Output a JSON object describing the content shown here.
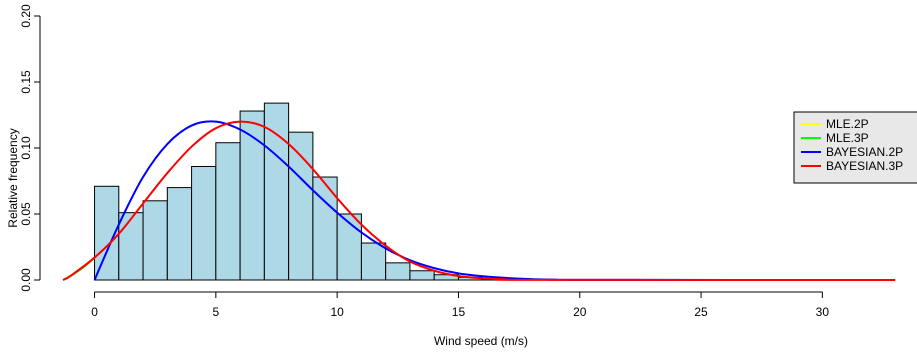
{
  "chart_data": {
    "type": "bar",
    "title": "",
    "xlabel": "Wind speed (m/s)",
    "ylabel": "Relative frequency",
    "xlim": [
      -1.3,
      33.2
    ],
    "ylim": [
      0,
      0.2
    ],
    "x_ticks": [
      0,
      5,
      10,
      15,
      20,
      25,
      30
    ],
    "y_ticks": [
      0.0,
      0.05,
      0.1,
      0.15,
      0.2
    ],
    "x_tick_labels": [
      "0",
      "5",
      "10",
      "15",
      "20",
      "25",
      "30"
    ],
    "y_tick_labels": [
      "0.00",
      "0.05",
      "0.10",
      "0.15",
      "0.20"
    ],
    "histogram": {
      "bin_width": 1,
      "bin_starts": [
        0,
        1,
        2,
        3,
        4,
        5,
        6,
        7,
        8,
        9,
        10,
        11,
        12,
        13,
        14,
        15,
        16,
        17
      ],
      "values": [
        0.071,
        0.051,
        0.06,
        0.07,
        0.086,
        0.104,
        0.128,
        0.134,
        0.112,
        0.078,
        0.05,
        0.028,
        0.013,
        0.007,
        0.004,
        0.002,
        0.001,
        0.0005
      ],
      "fill": "#add8e6",
      "stroke": "#000000"
    },
    "series": [
      {
        "name": "MLE.2P",
        "color": "#ffff00",
        "type": "line",
        "x": [
          -1.3,
          -1.0,
          -0.5,
          0
        ],
        "y": [
          0.0,
          0.003,
          0.009,
          0.017
        ]
      },
      {
        "name": "MLE.3P",
        "color": "#00ff00",
        "type": "line",
        "x": [
          -1.3,
          -1.0,
          -0.5,
          0
        ],
        "y": [
          0.0,
          0.003,
          0.009,
          0.017
        ]
      },
      {
        "name": "BAYESIAN.2P",
        "color": "#0000ff",
        "type": "line",
        "x": [
          0,
          1,
          2,
          3,
          4,
          5,
          6,
          7,
          8,
          9,
          10,
          11,
          12,
          13,
          14,
          15,
          16,
          17,
          18,
          19,
          20,
          33
        ],
        "y": [
          0,
          0.042,
          0.078,
          0.103,
          0.117,
          0.12,
          0.114,
          0.102,
          0.086,
          0.068,
          0.051,
          0.036,
          0.024,
          0.015,
          0.009,
          0.005,
          0.0028,
          0.0015,
          0.0007,
          0.0003,
          0.0001,
          0.0
        ]
      },
      {
        "name": "BAYESIAN.3P",
        "color": "#ff0000",
        "type": "line",
        "x": [
          -1.3,
          -1,
          0,
          1,
          2,
          3,
          4,
          5,
          6,
          7,
          8,
          9,
          10,
          11,
          12,
          13,
          14,
          15,
          16,
          17,
          18,
          33
        ],
        "y": [
          0.0,
          0.003,
          0.017,
          0.035,
          0.058,
          0.081,
          0.101,
          0.115,
          0.12,
          0.116,
          0.103,
          0.084,
          0.062,
          0.042,
          0.026,
          0.014,
          0.007,
          0.003,
          0.0012,
          0.0004,
          0.0001,
          0.0
        ]
      }
    ],
    "legend": {
      "position": "right",
      "entries": [
        "MLE.2P",
        "MLE.3P",
        "BAYESIAN.2P",
        "BAYESIAN.3P"
      ],
      "background": "#e8e8e8"
    },
    "grid": false
  }
}
